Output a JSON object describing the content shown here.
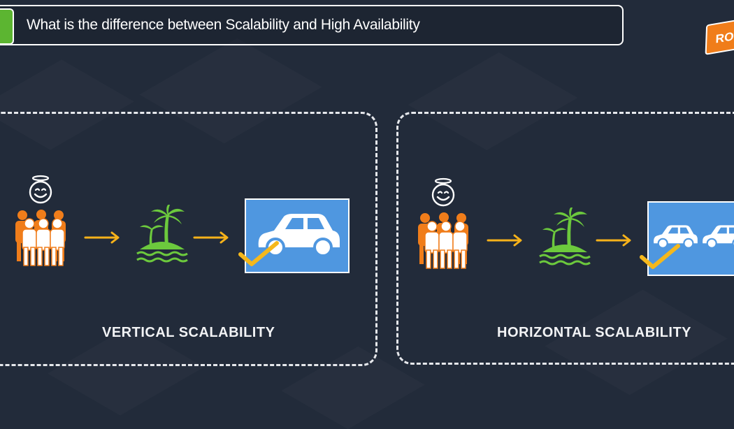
{
  "header": {
    "title": "What is the difference between Scalability and High Availability",
    "accent_color": "#5cb531"
  },
  "logo": {
    "text": "RO",
    "color": "#f07d1a"
  },
  "panels": [
    {
      "label": "VERTICAL SCALABILITY",
      "icons": [
        "smiling-face-icon",
        "people-group-icon",
        "arrow-right-icon",
        "island-icon",
        "arrow-right-icon",
        "car-icon",
        "checkmark-icon"
      ]
    },
    {
      "label": "HORIZONTAL SCALABILITY",
      "icons": [
        "smiling-face-icon",
        "people-group-icon",
        "arrow-right-icon",
        "island-icon",
        "arrow-right-icon",
        "car-icon",
        "car-icon",
        "checkmark-icon"
      ]
    }
  ],
  "colors": {
    "background": "#222b3a",
    "people": "#f07d1a",
    "island": "#6cc93d",
    "arrow": "#f6b21a",
    "car_box": "#4f97e0",
    "check": "#f5b81c"
  }
}
